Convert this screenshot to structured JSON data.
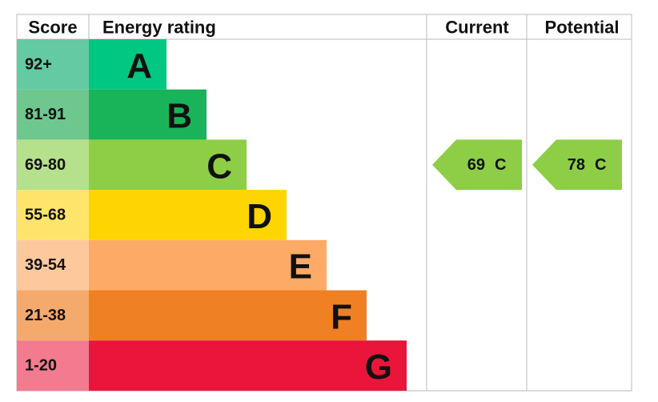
{
  "header": {
    "score": "Score",
    "rating": "Energy rating",
    "current": "Current",
    "potential": "Potential"
  },
  "bands": [
    {
      "range": "92+",
      "letter": "A",
      "color": "#00c781",
      "score_color": "#64caa3"
    },
    {
      "range": "81-91",
      "letter": "B",
      "color": "#19b459",
      "score_color": "#6ec78d"
    },
    {
      "range": "69-80",
      "letter": "C",
      "color": "#8dce46",
      "score_color": "#b5e08c"
    },
    {
      "range": "55-68",
      "letter": "D",
      "color": "#ffd500",
      "score_color": "#ffe46b"
    },
    {
      "range": "39-54",
      "letter": "E",
      "color": "#fcaa65",
      "score_color": "#fdc99c"
    },
    {
      "range": "21-38",
      "letter": "F",
      "color": "#ef8023",
      "score_color": "#f5aa6d"
    },
    {
      "range": "1-20",
      "letter": "G",
      "color": "#e9153b",
      "score_color": "#f27b90"
    }
  ],
  "current": {
    "score": 69,
    "letter": "C"
  },
  "potential": {
    "score": 78,
    "letter": "C"
  }
}
